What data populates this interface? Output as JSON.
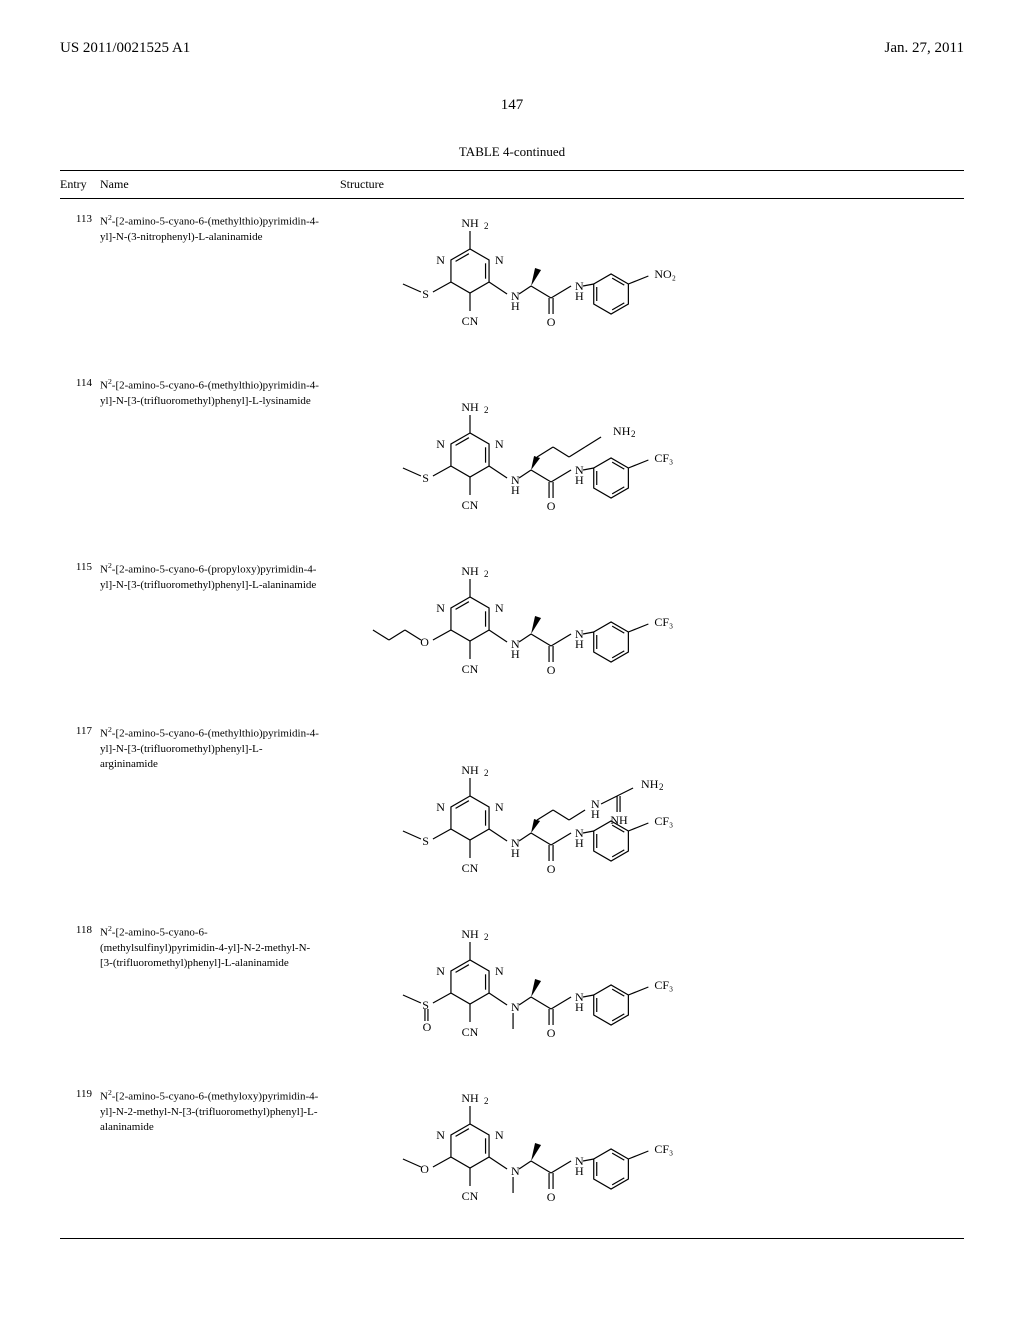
{
  "header": {
    "publication_number": "US 2011/0021525 A1",
    "publication_date": "Jan. 27, 2011"
  },
  "page_number": "147",
  "table": {
    "title": "TABLE 4-continued",
    "columns": {
      "entry": "Entry",
      "name": "Name",
      "structure": "Structure"
    },
    "rows": [
      {
        "entry": "113",
        "name_html": "N<sup>2</sup>-[2-amino-5-cyano-6-(methylthio)pyrimidin-4-yl]-N-(3-nitrophenyl)-L-alaninamide",
        "substituent_left": "S",
        "substituent_right": "NO₂",
        "side_chain": "CH3",
        "n_sub": ""
      },
      {
        "entry": "114",
        "name_html": "N<sup>2</sup>-[2-amino-5-cyano-6-(methylthio)pyrimidin-4-yl]-N-[3-(trifluoromethyl)phenyl]-L-lysinamide",
        "substituent_left": "S",
        "substituent_right": "CF₃",
        "side_chain": "lysine",
        "n_sub": ""
      },
      {
        "entry": "115",
        "name_html": "N<sup>2</sup>-[2-amino-5-cyano-6-(propyloxy)pyrimidin-4-yl]-N-[3-(trifluoromethyl)phenyl]-L-alaninamide",
        "substituent_left": "O-propyl",
        "substituent_right": "CF₃",
        "side_chain": "CH3",
        "n_sub": ""
      },
      {
        "entry": "117",
        "name_html": "N<sup>2</sup>-[2-amino-5-cyano-6-(methylthio)pyrimidin-4-yl]-N-[3-(trifluoromethyl)phenyl]-L-argininamide",
        "substituent_left": "S",
        "substituent_right": "CF₃",
        "side_chain": "arginine",
        "n_sub": ""
      },
      {
        "entry": "118",
        "name_html": "N<sup>2</sup>-[2-amino-5-cyano-6-(methylsulfinyl)pyrimidin-4-yl]-N-2-methyl-N-[3-(trifluoromethyl)phenyl]-L-alaninamide",
        "substituent_left": "SO",
        "substituent_right": "CF₃",
        "side_chain": "CH3",
        "n_sub": "CH3"
      },
      {
        "entry": "119",
        "name_html": "N<sup>2</sup>-[2-amino-5-cyano-6-(methyloxy)pyrimidin-4-yl]-N-2-methyl-N-[3-(trifluoromethyl)phenyl]-L-alaninamide",
        "substituent_left": "O",
        "substituent_right": "CF₃",
        "side_chain": "CH3",
        "n_sub": "CH3"
      }
    ]
  }
}
